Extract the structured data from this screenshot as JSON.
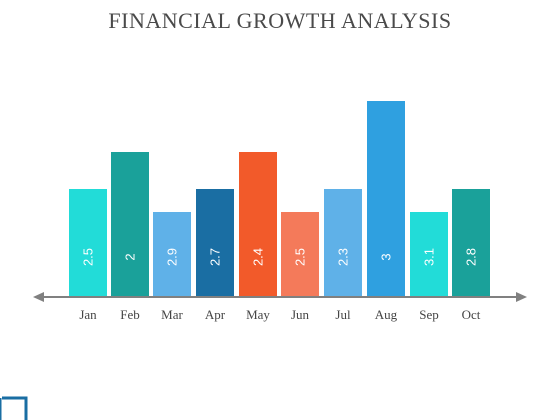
{
  "chart_data": {
    "type": "bar",
    "title": "FINANCIAL GROWTH ANALYSIS",
    "categories": [
      "Jan",
      "Feb",
      "Mar",
      "Apr",
      "May",
      "Jun",
      "Jul",
      "Aug",
      "Sep",
      "Oct"
    ],
    "values": [
      2.5,
      2,
      2.9,
      2.7,
      2.4,
      2.5,
      2.3,
      3,
      3.1,
      2.8
    ],
    "labels": [
      "2.5",
      "2",
      "2.9",
      "2.7",
      "2.4",
      "2.5",
      "2.3",
      "3",
      "3.1",
      "2.8"
    ],
    "bar_heights_relative": [
      108,
      145,
      85,
      108,
      145,
      85,
      108,
      196,
      85,
      108
    ],
    "colors": [
      "#22dcd8",
      "#1aa19a",
      "#5fb1e8",
      "#1a6ea3",
      "#f25a2a",
      "#f47a5a",
      "#5fb1e8",
      "#2fa0e0",
      "#22dcd8",
      "#1aa19a"
    ],
    "axis_color": "#808080",
    "label_color": "#ffffff",
    "tick_label_color": "#444444"
  }
}
